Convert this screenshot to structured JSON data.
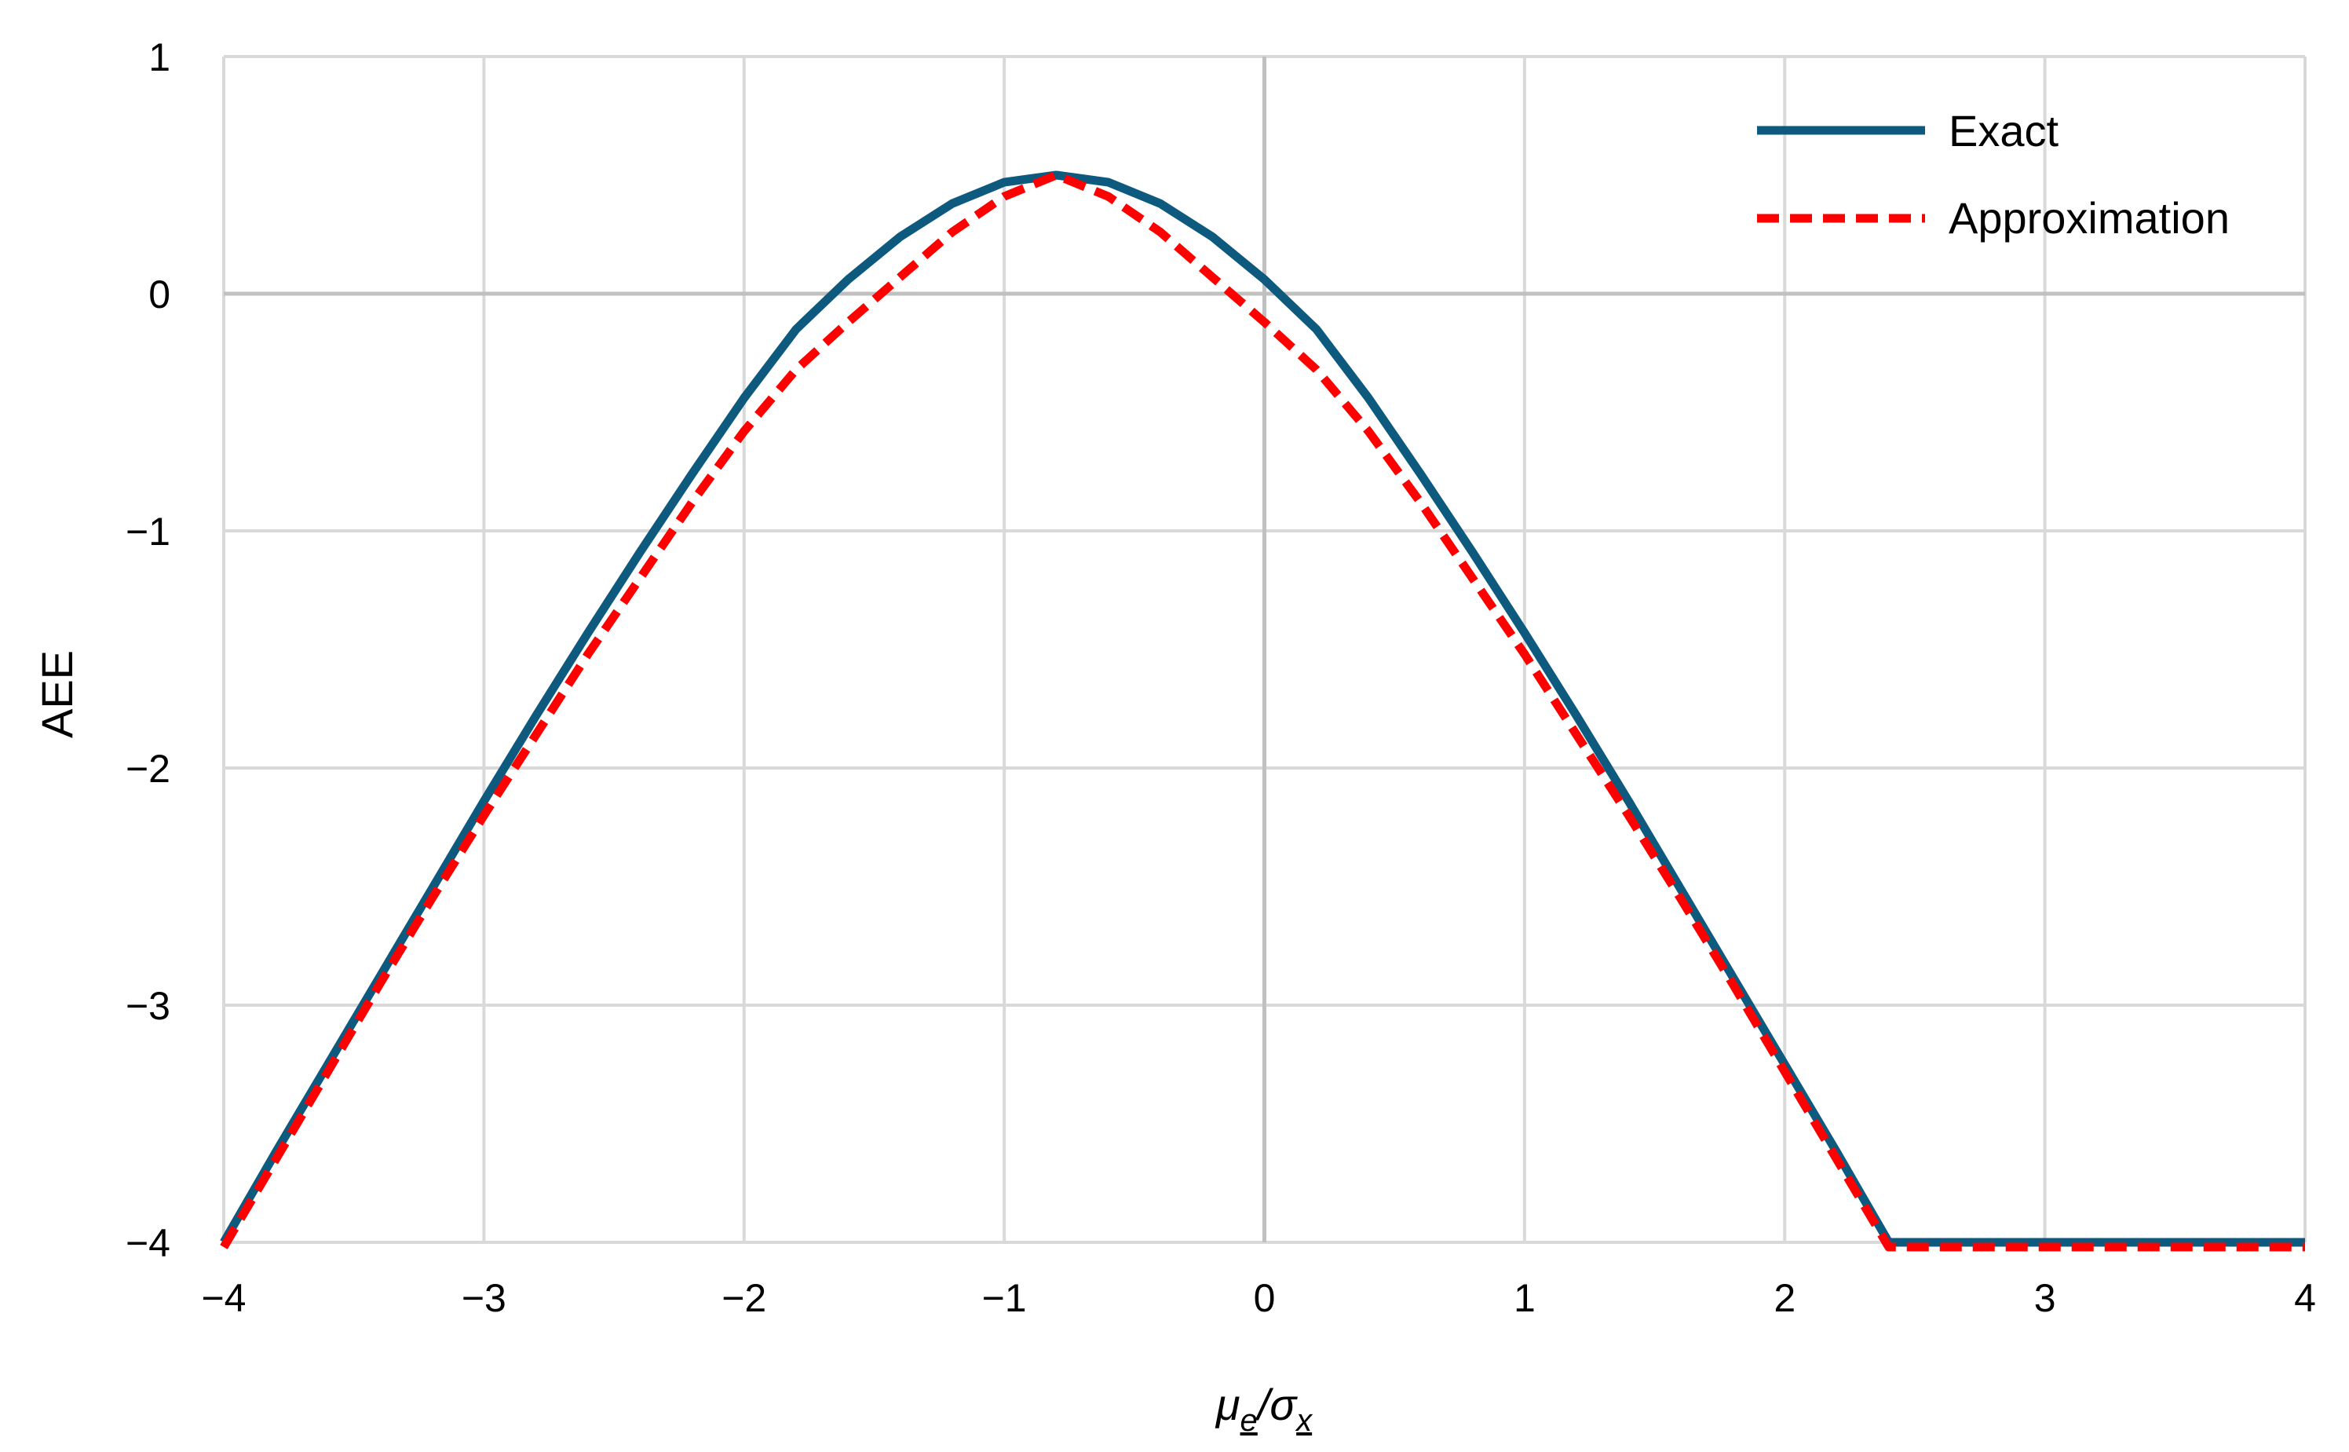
{
  "chart_data": {
    "type": "line",
    "title": "",
    "xlabel": "μe/σx",
    "ylabel": "AEE",
    "xlim": [
      -4,
      4
    ],
    "ylim": [
      -4,
      1
    ],
    "grid": true,
    "legend_position": "top-right",
    "x_ticks": [
      "−4",
      "−3",
      "−2",
      "−1",
      "0",
      "1",
      "2",
      "3",
      "4"
    ],
    "y_ticks": [
      "−4",
      "−3",
      "−2",
      "−1",
      "0",
      "1"
    ],
    "x_tick_values": [
      -4,
      -3,
      -2,
      -1,
      0,
      1,
      2,
      3,
      4
    ],
    "y_tick_values": [
      -4,
      -3,
      -2,
      -1,
      0,
      1
    ],
    "x": [
      -4.0,
      -3.8,
      -3.6,
      -3.4,
      -3.2,
      -3.0,
      -2.8,
      -2.6,
      -2.4,
      -2.2,
      -2.0,
      -1.8,
      -1.6,
      -1.4,
      -1.2,
      -1.0,
      -0.8,
      -0.6,
      -0.4,
      -0.2,
      0.0,
      0.2,
      0.4,
      0.6,
      0.8,
      1.0,
      1.2,
      1.4,
      1.6,
      1.8,
      2.0,
      2.2,
      2.4,
      2.6,
      2.8,
      3.0,
      3.2,
      3.4,
      3.6,
      3.8,
      4.0
    ],
    "series": [
      {
        "name": "Exact",
        "color": "#0E5A7E",
        "style": "solid",
        "values": [
          -4.0,
          -3.62,
          -3.25,
          -2.88,
          -2.51,
          -2.14,
          -1.78,
          -1.43,
          -1.09,
          -0.76,
          -0.44,
          -0.15,
          0.06,
          0.24,
          0.38,
          0.47,
          0.5,
          0.47,
          0.38,
          0.24,
          0.06,
          -0.15,
          -0.44,
          -0.76,
          -1.09,
          -1.43,
          -1.78,
          -2.14,
          -2.51,
          -2.88,
          -3.25,
          -3.62,
          -4.0,
          -4.0,
          -4.0,
          -4.0,
          -4.0,
          -4.0,
          -4.0,
          -4.0,
          -4.0
        ]
      },
      {
        "name": "Approximation",
        "color": "#FF0000",
        "style": "dashed",
        "values": [
          -4.02,
          -3.65,
          -3.28,
          -2.91,
          -2.55,
          -2.2,
          -1.86,
          -1.52,
          -1.2,
          -0.88,
          -0.58,
          -0.32,
          -0.12,
          0.07,
          0.26,
          0.41,
          0.5,
          0.41,
          0.26,
          0.07,
          -0.12,
          -0.32,
          -0.58,
          -0.88,
          -1.2,
          -1.52,
          -1.86,
          -2.2,
          -2.55,
          -2.91,
          -3.28,
          -3.65,
          -4.02,
          -4.02,
          -4.02,
          -4.02,
          -4.02,
          -4.02,
          -4.02,
          -4.02,
          -4.02
        ]
      }
    ]
  }
}
